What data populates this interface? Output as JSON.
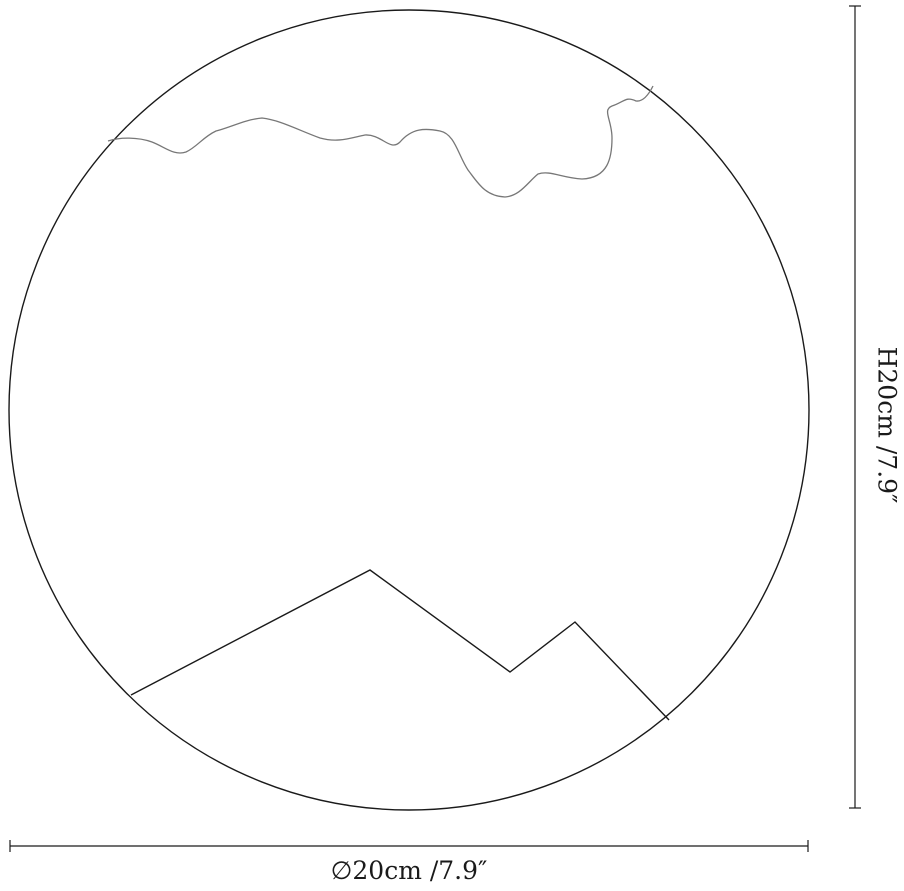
{
  "dimensions": {
    "width_label": "∅20cm /7.9″",
    "height_label": "H20cm /7.9″"
  },
  "colors": {
    "outline": "#1a1a1a",
    "contour": "#777777"
  }
}
